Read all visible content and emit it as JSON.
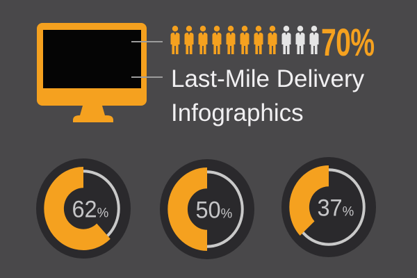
{
  "colors": {
    "background": "#49484A",
    "accent": "#F5A11F",
    "dark_circle": "#2A292C",
    "screen_black": "#050505",
    "title_text": "#F1F0F2",
    "muted_text": "#C5C5C7",
    "ring_gray": "#C9C9C9",
    "inactive_icon": "#E5E5E5",
    "connector_gray": "#9C9C9C"
  },
  "header": {
    "title_line1": "Last-Mile Delivery",
    "title_line2": "Infographics"
  },
  "chart_data": [
    {
      "type": "pictograph",
      "icon": "person-icon",
      "total": 11,
      "highlighted": 8,
      "label": "70%"
    },
    {
      "type": "donut",
      "value": 62,
      "unit": "%"
    },
    {
      "type": "donut",
      "value": 50,
      "unit": "%"
    },
    {
      "type": "donut",
      "value": 37,
      "unit": "%"
    }
  ]
}
